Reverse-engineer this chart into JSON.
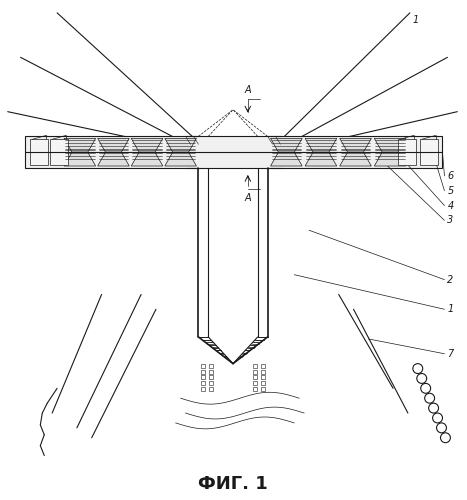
{
  "title": "ФИГ. 1",
  "title_fontsize": 13,
  "title_fontweight": "bold",
  "bg_color": "#ffffff",
  "line_color": "#1a1a1a",
  "figsize": [
    4.67,
    5.0
  ],
  "dpi": 100
}
